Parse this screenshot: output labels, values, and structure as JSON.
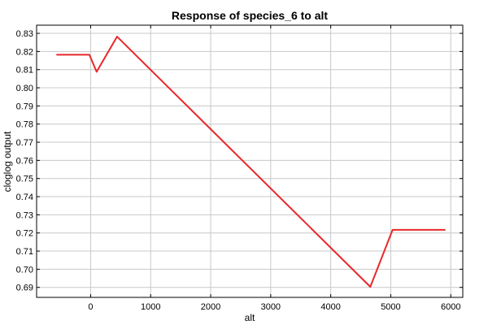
{
  "chart_data": {
    "type": "line",
    "title": "Response of species_6 to alt",
    "xlabel": "alt",
    "ylabel": "cloglog output",
    "xlim": [
      -900,
      6200
    ],
    "ylim": [
      0.6845,
      0.8345
    ],
    "xticks": [
      0,
      1000,
      2000,
      3000,
      4000,
      5000,
      6000
    ],
    "yticks": [
      0.69,
      0.7,
      0.71,
      0.72,
      0.73,
      0.74,
      0.75,
      0.76,
      0.77,
      0.78,
      0.79,
      0.8,
      0.81,
      0.82,
      0.83
    ],
    "grid": true,
    "line_color": "#e8282b",
    "series": [
      {
        "x": [
          -560,
          -20,
          100,
          440,
          4660,
          5030,
          5900
        ],
        "y": [
          0.8182,
          0.8182,
          0.8088,
          0.8282,
          0.6903,
          0.7217,
          0.7217
        ]
      }
    ]
  }
}
